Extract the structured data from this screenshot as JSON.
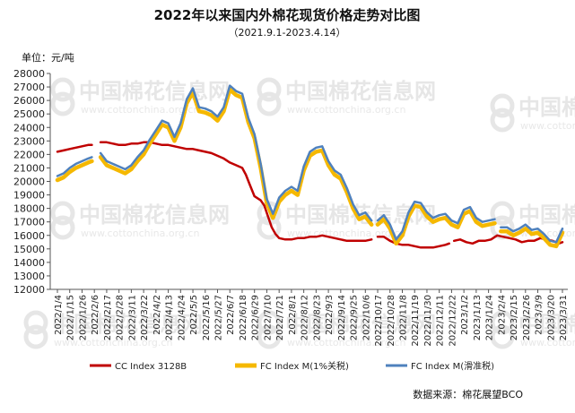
{
  "chart_data": {
    "type": "line",
    "title": "2022年以来国内外棉花现货价格走势对比图",
    "subtitle": "（2021.9.1-2023.4.14）",
    "ylabel": "单位：元/吨",
    "ylim": [
      12000,
      28000
    ],
    "yticks": [
      12000,
      13000,
      14000,
      15000,
      16000,
      17000,
      18000,
      19000,
      20000,
      21000,
      22000,
      23000,
      24000,
      25000,
      26000,
      27000,
      28000
    ],
    "xticks": [
      "2022/1/4",
      "2022/1/15",
      "2022/1/26",
      "2022/2/6",
      "2022/2/17",
      "2022/2/28",
      "2022/3/11",
      "2022/3/22",
      "2022/4/2",
      "2022/4/13",
      "2022/4/24",
      "2022/5/5",
      "2022/5/16",
      "2022/5/27",
      "2022/6/7",
      "2022/6/18",
      "2022/6/29",
      "2022/7/10",
      "2022/7/21",
      "2022/8/1",
      "2022/8/12",
      "2022/8/23",
      "2022/9/3",
      "2022/9/14",
      "2022/9/25",
      "2022/10/6",
      "2022/10/17",
      "2022/10/28",
      "2022/11/8",
      "2022/11/19",
      "2022/11/30",
      "2022/12/11",
      "2022/12/22",
      "2023/1/2",
      "2023/1/13",
      "2023/1/24",
      "2023/2/4",
      "2023/2/15",
      "2023/2/26",
      "2023/3/9",
      "2023/3/20",
      "2023/3/31"
    ],
    "grid": false,
    "legend_position": "bottom",
    "series": [
      {
        "name": "CC Index 3128B",
        "color": "#c00000",
        "points": [
          [
            0,
            22200
          ],
          [
            0.5,
            22300
          ],
          [
            1,
            22400
          ],
          [
            1.5,
            22500
          ],
          [
            2,
            22600
          ],
          [
            2.5,
            22700
          ],
          [
            2.8,
            22700
          ],
          [
            null,
            null
          ],
          [
            3.5,
            22900
          ],
          [
            4,
            22900
          ],
          [
            4.5,
            22800
          ],
          [
            5,
            22700
          ],
          [
            5.5,
            22700
          ],
          [
            6,
            22800
          ],
          [
            6.5,
            22800
          ],
          [
            7,
            22900
          ],
          [
            7.5,
            22900
          ],
          [
            8,
            22800
          ],
          [
            8.5,
            22700
          ],
          [
            9,
            22700
          ],
          [
            9.5,
            22600
          ],
          [
            10,
            22500
          ],
          [
            10.5,
            22400
          ],
          [
            11,
            22400
          ],
          [
            11.5,
            22300
          ],
          [
            12,
            22200
          ],
          [
            12.5,
            22100
          ],
          [
            13,
            21900
          ],
          [
            13.5,
            21700
          ],
          [
            14,
            21400
          ],
          [
            14.5,
            21200
          ],
          [
            15,
            21000
          ],
          [
            15.3,
            20500
          ],
          [
            15.6,
            19800
          ],
          [
            16,
            18900
          ],
          [
            16.5,
            18600
          ],
          [
            16.8,
            18200
          ],
          [
            17.1,
            17400
          ],
          [
            17.4,
            16600
          ],
          [
            17.7,
            16100
          ],
          [
            18,
            15800
          ],
          [
            18.5,
            15700
          ],
          [
            19,
            15700
          ],
          [
            19.5,
            15800
          ],
          [
            20,
            15800
          ],
          [
            20.5,
            15900
          ],
          [
            21,
            15900
          ],
          [
            21.5,
            16000
          ],
          [
            22,
            15900
          ],
          [
            22.5,
            15800
          ],
          [
            23,
            15700
          ],
          [
            23.5,
            15600
          ],
          [
            24,
            15600
          ],
          [
            24.5,
            15600
          ],
          [
            25,
            15600
          ],
          [
            25.5,
            15700
          ],
          [
            null,
            null
          ],
          [
            26,
            15900
          ],
          [
            26.5,
            15900
          ],
          [
            27,
            15600
          ],
          [
            27.5,
            15400
          ],
          [
            28,
            15300
          ],
          [
            28.5,
            15300
          ],
          [
            29,
            15200
          ],
          [
            29.5,
            15100
          ],
          [
            30,
            15100
          ],
          [
            30.5,
            15100
          ],
          [
            31,
            15200
          ],
          [
            31.5,
            15300
          ],
          [
            31.8,
            15400
          ],
          [
            null,
            null
          ],
          [
            32.2,
            15600
          ],
          [
            32.7,
            15700
          ],
          [
            33.2,
            15500
          ],
          [
            33.7,
            15400
          ],
          [
            34.2,
            15600
          ],
          [
            34.7,
            15600
          ],
          [
            35.2,
            15700
          ],
          [
            35.7,
            16000
          ],
          [
            36.2,
            15900
          ],
          [
            36.7,
            15800
          ],
          [
            37.2,
            15700
          ],
          [
            37.7,
            15500
          ],
          [
            38.2,
            15600
          ],
          [
            38.7,
            15600
          ],
          [
            39.2,
            15800
          ],
          [
            39.7,
            15700
          ],
          [
            40.2,
            15600
          ],
          [
            40.7,
            15400
          ],
          [
            41,
            15500
          ]
        ]
      },
      {
        "name": "FC Index M(1%关税)",
        "color": "#f5b800",
        "points": [
          [
            0,
            20100
          ],
          [
            0.5,
            20300
          ],
          [
            1,
            20700
          ],
          [
            1.5,
            21000
          ],
          [
            2,
            21200
          ],
          [
            2.5,
            21400
          ],
          [
            2.8,
            21500
          ],
          [
            null,
            null
          ],
          [
            3.5,
            21800
          ],
          [
            4,
            21200
          ],
          [
            4.5,
            21000
          ],
          [
            5,
            20800
          ],
          [
            5.5,
            20600
          ],
          [
            6,
            20900
          ],
          [
            6.5,
            21500
          ],
          [
            7,
            22000
          ],
          [
            7.5,
            22800
          ],
          [
            8,
            23500
          ],
          [
            8.5,
            24200
          ],
          [
            9,
            24000
          ],
          [
            9.5,
            23000
          ],
          [
            10,
            24000
          ],
          [
            10.5,
            25800
          ],
          [
            11,
            26600
          ],
          [
            11.5,
            25200
          ],
          [
            12,
            25100
          ],
          [
            12.5,
            24900
          ],
          [
            13,
            24500
          ],
          [
            13.5,
            25200
          ],
          [
            14,
            26800
          ],
          [
            14.5,
            26400
          ],
          [
            15,
            26200
          ],
          [
            15.5,
            24400
          ],
          [
            16,
            23200
          ],
          [
            16.5,
            21000
          ],
          [
            17,
            18400
          ],
          [
            17.5,
            17300
          ],
          [
            18,
            18500
          ],
          [
            18.5,
            19000
          ],
          [
            19,
            19300
          ],
          [
            19.5,
            19000
          ],
          [
            20,
            20800
          ],
          [
            20.5,
            21900
          ],
          [
            21,
            22200
          ],
          [
            21.5,
            22300
          ],
          [
            22,
            21200
          ],
          [
            22.5,
            20500
          ],
          [
            23,
            20200
          ],
          [
            23.5,
            19200
          ],
          [
            24,
            18000
          ],
          [
            24.5,
            17200
          ],
          [
            25,
            17400
          ],
          [
            25.5,
            16800
          ],
          [
            null,
            null
          ],
          [
            26,
            16800
          ],
          [
            26.5,
            17200
          ],
          [
            27,
            16500
          ],
          [
            27.5,
            15400
          ],
          [
            28,
            16000
          ],
          [
            28.5,
            17400
          ],
          [
            29,
            18200
          ],
          [
            29.5,
            18100
          ],
          [
            30,
            17400
          ],
          [
            30.5,
            17000
          ],
          [
            31,
            17200
          ],
          [
            31.5,
            17300
          ],
          [
            32,
            16800
          ],
          [
            32.5,
            16600
          ],
          [
            33,
            17600
          ],
          [
            33.5,
            17800
          ],
          [
            34,
            17000
          ],
          [
            34.5,
            16700
          ],
          [
            35,
            16800
          ],
          [
            35.5,
            16900
          ],
          [
            null,
            null
          ],
          [
            36,
            16300
          ],
          [
            36.5,
            16300
          ],
          [
            37,
            16000
          ],
          [
            37.5,
            16200
          ],
          [
            38,
            16500
          ],
          [
            38.5,
            16100
          ],
          [
            39,
            16200
          ],
          [
            39.5,
            15800
          ],
          [
            40,
            15300
          ],
          [
            40.5,
            15200
          ],
          [
            41,
            16200
          ]
        ]
      },
      {
        "name": "FC Index M(滑准税)",
        "color": "#4f81bd",
        "points": [
          [
            0,
            20400
          ],
          [
            0.5,
            20600
          ],
          [
            1,
            21000
          ],
          [
            1.5,
            21300
          ],
          [
            2,
            21500
          ],
          [
            2.5,
            21700
          ],
          [
            2.8,
            21800
          ],
          [
            null,
            null
          ],
          [
            3.5,
            22100
          ],
          [
            4,
            21500
          ],
          [
            4.5,
            21300
          ],
          [
            5,
            21100
          ],
          [
            5.5,
            20900
          ],
          [
            6,
            21200
          ],
          [
            6.5,
            21800
          ],
          [
            7,
            22300
          ],
          [
            7.5,
            23100
          ],
          [
            8,
            23800
          ],
          [
            8.5,
            24500
          ],
          [
            9,
            24300
          ],
          [
            9.5,
            23300
          ],
          [
            10,
            24300
          ],
          [
            10.5,
            26100
          ],
          [
            11,
            26900
          ],
          [
            11.5,
            25500
          ],
          [
            12,
            25400
          ],
          [
            12.5,
            25200
          ],
          [
            13,
            24800
          ],
          [
            13.5,
            25500
          ],
          [
            14,
            27100
          ],
          [
            14.5,
            26700
          ],
          [
            15,
            26500
          ],
          [
            15.5,
            24700
          ],
          [
            16,
            23500
          ],
          [
            16.5,
            21300
          ],
          [
            17,
            18700
          ],
          [
            17.5,
            17600
          ],
          [
            18,
            18800
          ],
          [
            18.5,
            19300
          ],
          [
            19,
            19600
          ],
          [
            19.5,
            19300
          ],
          [
            20,
            21100
          ],
          [
            20.5,
            22200
          ],
          [
            21,
            22500
          ],
          [
            21.5,
            22600
          ],
          [
            22,
            21500
          ],
          [
            22.5,
            20800
          ],
          [
            23,
            20500
          ],
          [
            23.5,
            19500
          ],
          [
            24,
            18300
          ],
          [
            24.5,
            17500
          ],
          [
            25,
            17700
          ],
          [
            25.5,
            17100
          ],
          [
            null,
            null
          ],
          [
            26,
            17100
          ],
          [
            26.5,
            17500
          ],
          [
            27,
            16800
          ],
          [
            27.5,
            15700
          ],
          [
            28,
            16300
          ],
          [
            28.5,
            17700
          ],
          [
            29,
            18500
          ],
          [
            29.5,
            18400
          ],
          [
            30,
            17700
          ],
          [
            30.5,
            17300
          ],
          [
            31,
            17500
          ],
          [
            31.5,
            17600
          ],
          [
            32,
            17100
          ],
          [
            32.5,
            16900
          ],
          [
            33,
            17900
          ],
          [
            33.5,
            18100
          ],
          [
            34,
            17300
          ],
          [
            34.5,
            17000
          ],
          [
            35,
            17100
          ],
          [
            35.5,
            17200
          ],
          [
            null,
            null
          ],
          [
            36,
            16600
          ],
          [
            36.5,
            16600
          ],
          [
            37,
            16300
          ],
          [
            37.5,
            16500
          ],
          [
            38,
            16800
          ],
          [
            38.5,
            16400
          ],
          [
            39,
            16500
          ],
          [
            39.5,
            16100
          ],
          [
            40,
            15600
          ],
          [
            40.5,
            15500
          ],
          [
            41,
            16500
          ]
        ]
      }
    ]
  },
  "footer": {
    "source": "数据来源：棉花展望BCO"
  },
  "watermark": {
    "name": "中国棉花信息网",
    "url": "www.cottonchina.org.cn"
  },
  "colors": {
    "axis": "#555555",
    "watermark": "#e6e6e6"
  }
}
